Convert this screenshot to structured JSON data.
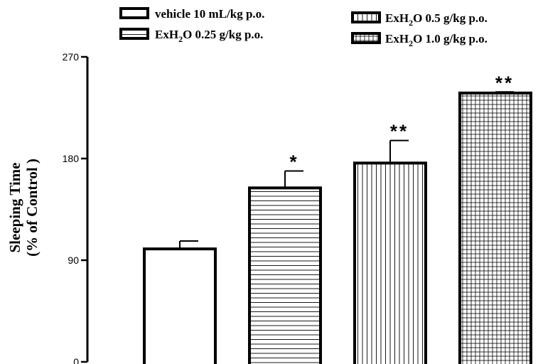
{
  "chart_data": {
    "type": "bar",
    "title": "",
    "xlabel": "",
    "ylabel_lines": [
      "Sleeping Time",
      "(% of Control )"
    ],
    "ylim": [
      0,
      270
    ],
    "yticks": [
      0,
      90,
      180,
      270
    ],
    "grid": false,
    "legend_position": "top",
    "categories": [
      "vehicle 10 mL/kg p.o.",
      "ExH2O 0.25 g/kg p.o.",
      "ExH2O 0.5 g/kg p.o.",
      "ExH2O 1.0 g/kg p.o."
    ],
    "series": [
      {
        "values": [
          100,
          154,
          176,
          238
        ],
        "errors": [
          7,
          15,
          20,
          1
        ],
        "significance": [
          "",
          "*",
          "**",
          "**"
        ],
        "patterns": [
          "none",
          "horizontal-lines",
          "vertical-lines",
          "grid"
        ]
      }
    ],
    "legend": [
      {
        "pre": "vehicle 10 mL/kg p.o.",
        "sub": "",
        "post": "",
        "pattern": "none"
      },
      {
        "pre": "ExH",
        "sub": "2",
        "post": "O 0.25 g/kg p.o.",
        "pattern": "horizontal-lines"
      },
      {
        "pre": "ExH",
        "sub": "2",
        "post": "O 0.5 g/kg p.o.",
        "pattern": "vertical-lines"
      },
      {
        "pre": "ExH",
        "sub": "2",
        "post": "O 1.0 g/kg p.o.",
        "pattern": "grid"
      }
    ]
  }
}
